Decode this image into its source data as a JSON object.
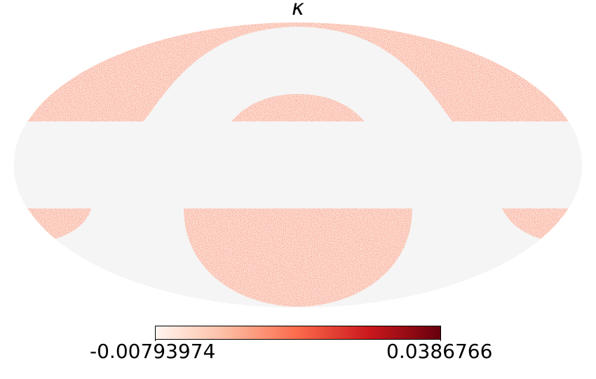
{
  "title": "κ",
  "colorbar": {
    "min_label": "-0.00793974",
    "max_label": "0.0386766",
    "min_value": -0.00793974,
    "max_value": 0.0386766,
    "colormap": [
      "#fff5f0",
      "#fcbba1",
      "#fb6a4a",
      "#cb181d",
      "#67000d"
    ]
  },
  "map": {
    "projection": "mollweide",
    "masked_color": "#f5f5f5",
    "field": "convergence noise map (reds colormap)"
  }
}
